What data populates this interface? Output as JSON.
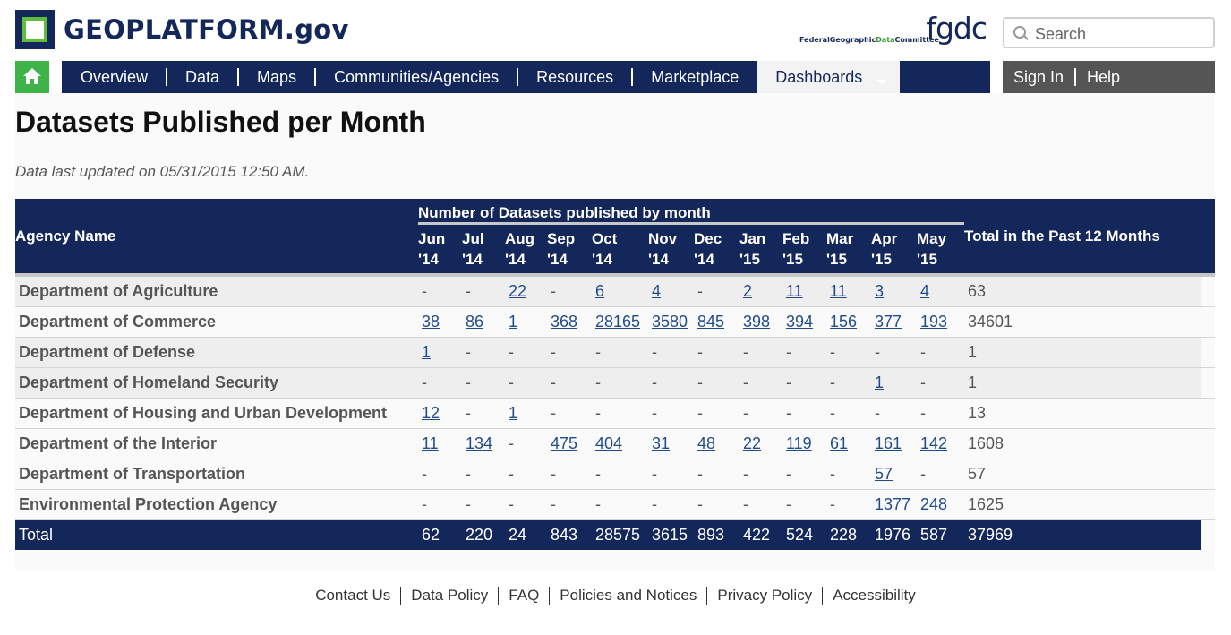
{
  "brand": {
    "logo_text": "GEOPLATFORM.gov",
    "fgdc_big": "fgdc",
    "fgdc_small_1": "FederalGeographic",
    "fgdc_small_2": "Data",
    "fgdc_small_3": "Committee"
  },
  "search": {
    "placeholder": "Search"
  },
  "nav": {
    "items": [
      "Overview",
      "Data",
      "Maps",
      "Communities/Agencies",
      "Resources",
      "Marketplace"
    ],
    "active": "Dashboards",
    "util": [
      "Sign In",
      "Help"
    ]
  },
  "page": {
    "title": "Datasets Published per Month",
    "updated": "Data last updated on 05/31/2015 12:50 AM."
  },
  "table": {
    "col_agency": "Agency Name",
    "col_group": "Number of Datasets published by month",
    "col_total": "Total in the Past 12 Months",
    "months": [
      {
        "m": "Jun",
        "y": "'14"
      },
      {
        "m": "Jul",
        "y": "'14"
      },
      {
        "m": "Aug",
        "y": "'14"
      },
      {
        "m": "Sep",
        "y": "'14"
      },
      {
        "m": "Oct",
        "y": "'14"
      },
      {
        "m": "Nov",
        "y": "'14"
      },
      {
        "m": "Dec",
        "y": "'14"
      },
      {
        "m": "Jan",
        "y": "'15"
      },
      {
        "m": "Feb",
        "y": "'15"
      },
      {
        "m": "Mar",
        "y": "'15"
      },
      {
        "m": "Apr",
        "y": "'15"
      },
      {
        "m": "May",
        "y": "'15"
      }
    ],
    "rows": [
      {
        "agency": "Department of Agriculture",
        "values": [
          "-",
          "-",
          "22",
          "-",
          "6",
          "4",
          "-",
          "2",
          "11",
          "11",
          "3",
          "4"
        ],
        "total": "63"
      },
      {
        "agency": "Department of Commerce",
        "values": [
          "38",
          "86",
          "1",
          "368",
          "28165",
          "3580",
          "845",
          "398",
          "394",
          "156",
          "377",
          "193"
        ],
        "total": "34601"
      },
      {
        "agency": "Department of Defense",
        "values": [
          "1",
          "-",
          "-",
          "-",
          "-",
          "-",
          "-",
          "-",
          "-",
          "-",
          "-",
          "-"
        ],
        "total": "1"
      },
      {
        "agency": "Department of Homeland Security",
        "values": [
          "-",
          "-",
          "-",
          "-",
          "-",
          "-",
          "-",
          "-",
          "-",
          "-",
          "1",
          "-"
        ],
        "total": "1"
      },
      {
        "agency": "Department of Housing and Urban Development",
        "values": [
          "12",
          "-",
          "1",
          "-",
          "-",
          "-",
          "-",
          "-",
          "-",
          "-",
          "-",
          "-"
        ],
        "total": "13"
      },
      {
        "agency": "Department of the Interior",
        "values": [
          "11",
          "134",
          "-",
          "475",
          "404",
          "31",
          "48",
          "22",
          "119",
          "61",
          "161",
          "142"
        ],
        "total": "1608"
      },
      {
        "agency": "Department of Transportation",
        "values": [
          "-",
          "-",
          "-",
          "-",
          "-",
          "-",
          "-",
          "-",
          "-",
          "-",
          "57",
          "-"
        ],
        "total": "57"
      },
      {
        "agency": "Environmental Protection Agency",
        "values": [
          "-",
          "-",
          "-",
          "-",
          "-",
          "-",
          "-",
          "-",
          "-",
          "-",
          "1377",
          "248"
        ],
        "total": "1625"
      }
    ],
    "total_row": {
      "label": "Total",
      "values": [
        "62",
        "220",
        "24",
        "843",
        "28575",
        "3615",
        "893",
        "422",
        "524",
        "228",
        "1976",
        "587"
      ],
      "total": "37969"
    }
  },
  "footer": {
    "links": [
      "Contact Us",
      "Data Policy",
      "FAQ",
      "Policies and Notices",
      "Privacy Policy",
      "Accessibility"
    ]
  }
}
